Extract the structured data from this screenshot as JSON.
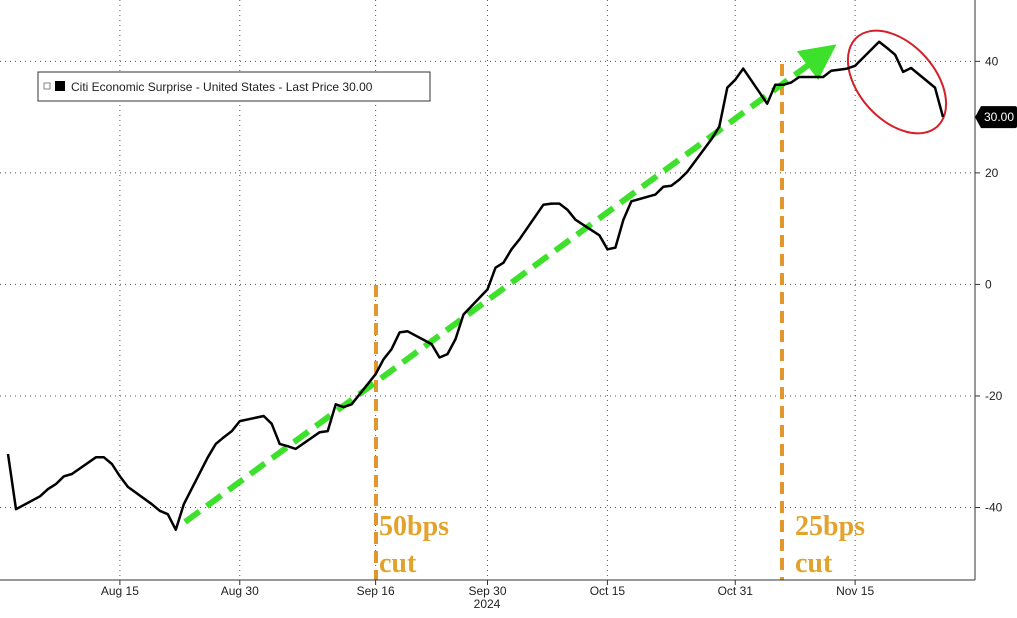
{
  "chart_data": {
    "type": "line",
    "x": [
      "2024-08-01",
      "2024-08-02",
      "2024-08-05",
      "2024-08-06",
      "2024-08-07",
      "2024-08-08",
      "2024-08-09",
      "2024-08-12",
      "2024-08-13",
      "2024-08-14",
      "2024-08-15",
      "2024-08-16",
      "2024-08-19",
      "2024-08-20",
      "2024-08-21",
      "2024-08-22",
      "2024-08-23",
      "2024-08-26",
      "2024-08-27",
      "2024-08-28",
      "2024-08-29",
      "2024-08-30",
      "2024-09-02",
      "2024-09-03",
      "2024-09-04",
      "2024-09-05",
      "2024-09-06",
      "2024-09-09",
      "2024-09-10",
      "2024-09-11",
      "2024-09-12",
      "2024-09-13",
      "2024-09-16",
      "2024-09-17",
      "2024-09-18",
      "2024-09-19",
      "2024-09-20",
      "2024-09-23",
      "2024-09-24",
      "2024-09-25",
      "2024-09-26",
      "2024-09-27",
      "2024-09-30",
      "2024-10-01",
      "2024-10-02",
      "2024-10-03",
      "2024-10-04",
      "2024-10-07",
      "2024-10-08",
      "2024-10-09",
      "2024-10-10",
      "2024-10-11",
      "2024-10-14",
      "2024-10-15",
      "2024-10-16",
      "2024-10-17",
      "2024-10-18",
      "2024-10-21",
      "2024-10-22",
      "2024-10-23",
      "2024-10-24",
      "2024-10-25",
      "2024-10-28",
      "2024-10-29",
      "2024-10-30",
      "2024-10-31",
      "2024-11-01",
      "2024-11-04",
      "2024-11-05",
      "2024-11-06",
      "2024-11-07",
      "2024-11-08",
      "2024-11-11",
      "2024-11-12",
      "2024-11-13",
      "2024-11-14",
      "2024-11-15",
      "2024-11-18",
      "2024-11-19",
      "2024-11-20",
      "2024-11-21",
      "2024-11-22",
      "2024-11-25",
      "2024-11-26"
    ],
    "series": [
      {
        "name": "Citi Economic Surprise - United States - Last Price 30.00",
        "color": "#000000",
        "values": [
          -30.4,
          -40.3,
          -38,
          -36.7,
          -35.8,
          -34.4,
          -34,
          -31,
          -31,
          -32.2,
          -34.4,
          -36.3,
          -39.4,
          -40.6,
          -41.2,
          -44,
          -39.4,
          -31,
          -28.6,
          -27.4,
          -26.3,
          -24.5,
          -23.6,
          -25,
          -28.6,
          -29,
          -29.5,
          -26.5,
          -26.3,
          -21.5,
          -22,
          -21.5,
          -16.1,
          -13.4,
          -11.6,
          -8.6,
          -8.4,
          -10.7,
          -13.1,
          -12.5,
          -9.8,
          -5.4,
          -0.9,
          3,
          3.9,
          6.3,
          8.1,
          14.3,
          14.5,
          14.5,
          13.4,
          11.6,
          8.8,
          6.3,
          6.6,
          11.6,
          14.9,
          16.1,
          17.5,
          17.7,
          18.8,
          20.2,
          26,
          28.3,
          35.3,
          36.7,
          38.7,
          32.4,
          35.8,
          35.8,
          36.2,
          37.2,
          37.2,
          38.3,
          38.5,
          38.7,
          39.2,
          43.5,
          42.4,
          41.2,
          38.1,
          38.8,
          35.3,
          30
        ],
        "value_labels": [
          null,
          null,
          null,
          null,
          null,
          null,
          null,
          null,
          null,
          null,
          null,
          null,
          null,
          null,
          null,
          null,
          null,
          null,
          null,
          null,
          null,
          null,
          null,
          null,
          null,
          null,
          null,
          null,
          null,
          null,
          null,
          null,
          null,
          null,
          null,
          null,
          null,
          null,
          null,
          null,
          null,
          null,
          null,
          null,
          null,
          null,
          null,
          null,
          null,
          null,
          null,
          null,
          null,
          null,
          null,
          null,
          null,
          null,
          null,
          null,
          null,
          null,
          null,
          null,
          null,
          null,
          null,
          null,
          null,
          null,
          null,
          null,
          null,
          null,
          null,
          null,
          null,
          null,
          null,
          null,
          null,
          null,
          null,
          "30.00"
        ]
      }
    ],
    "xlim": [
      "2024-07-31",
      "2024-11-30"
    ],
    "xticks": [
      {
        "value": "2024-08-15",
        "label": "Aug 15"
      },
      {
        "value": "2024-08-30",
        "label": "Aug 30"
      },
      {
        "value": "2024-09-16",
        "label": "Sep 16"
      },
      {
        "value": "2024-09-30",
        "label": "Sep 30"
      },
      {
        "value": "2024-10-15",
        "label": "Oct 15"
      },
      {
        "value": "2024-10-31",
        "label": "Oct 31"
      },
      {
        "value": "2024-11-15",
        "label": "Nov 15"
      }
    ],
    "xlabel": "2024",
    "ylim": [
      -53,
      51
    ],
    "yticks": [
      -40,
      -20,
      0,
      20,
      40
    ],
    "grid": true,
    "annotations": [
      {
        "lines": [
          "50bps",
          "cut"
        ]
      },
      {
        "lines": [
          "25bps",
          "cut"
        ]
      }
    ]
  }
}
